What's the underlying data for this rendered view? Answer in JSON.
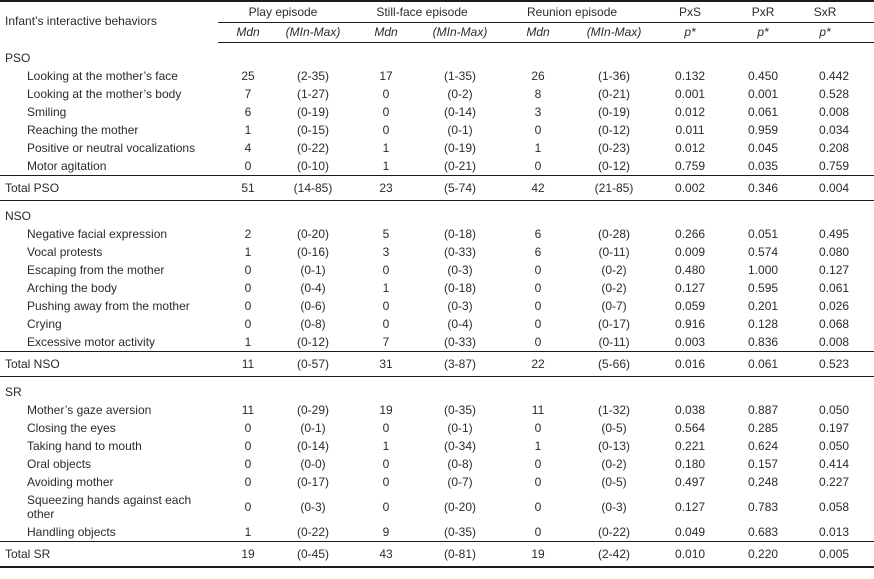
{
  "table": {
    "row_header_label": "Infant’s interactive behaviors",
    "column_groups": [
      {
        "label": "Play episode",
        "sub": [
          "Mdn",
          "(MIn-Max)"
        ]
      },
      {
        "label": "Still-face episode",
        "sub": [
          "Mdn",
          "(MIn-Max)"
        ]
      },
      {
        "label": "Reunion episode",
        "sub": [
          "Mdn",
          "(MIn-Max)"
        ]
      },
      {
        "label": "PxS",
        "sub": [
          "p*"
        ]
      },
      {
        "label": "PxR",
        "sub": [
          "p*"
        ]
      },
      {
        "label": "SxR",
        "sub": [
          "p*"
        ]
      }
    ],
    "sections": [
      {
        "name": "PSO",
        "rows": [
          {
            "label": "Looking at the mother’s face",
            "values": [
              "25",
              "(2-35)",
              "17",
              "(1-35)",
              "26",
              "(1-36)",
              "0.132",
              "0.450",
              "0.442"
            ]
          },
          {
            "label": "Looking at the mother’s body",
            "values": [
              "7",
              "(1-27)",
              "0",
              "(0-2)",
              "8",
              "(0-21)",
              "0.001",
              "0.001",
              "0.528"
            ]
          },
          {
            "label": "Smiling",
            "values": [
              "6",
              "(0-19)",
              "0",
              "(0-14)",
              "3",
              "(0-19)",
              "0.012",
              "0.061",
              "0.008"
            ]
          },
          {
            "label": "Reaching the mother",
            "values": [
              "1",
              "(0-15)",
              "0",
              "(0-1)",
              "0",
              "(0-12)",
              "0.011",
              "0.959",
              "0.034"
            ]
          },
          {
            "label": "Positive or neutral vocalizations",
            "values": [
              "4",
              "(0-22)",
              "1",
              "(0-19)",
              "1",
              "(0-23)",
              "0.012",
              "0.045",
              "0.208"
            ]
          },
          {
            "label": "Motor agitation",
            "values": [
              "0",
              "(0-10)",
              "1",
              "(0-21)",
              "0",
              "(0-12)",
              "0.759",
              "0.035",
              "0.759"
            ]
          }
        ],
        "total": {
          "label": "Total PSO",
          "values": [
            "51",
            "(14-85)",
            "23",
            "(5-74)",
            "42",
            "(21-85)",
            "0.002",
            "0.346",
            "0.004"
          ]
        }
      },
      {
        "name": "NSO",
        "rows": [
          {
            "label": "Negative facial expression",
            "values": [
              "2",
              "(0-20)",
              "5",
              "(0-18)",
              "6",
              "(0-28)",
              "0.266",
              "0.051",
              "0.495"
            ]
          },
          {
            "label": "Vocal protests",
            "values": [
              "1",
              "(0-16)",
              "3",
              "(0-33)",
              "6",
              "(0-11)",
              "0.009",
              "0.574",
              "0.080"
            ]
          },
          {
            "label": "Escaping from the mother",
            "values": [
              "0",
              "(0-1)",
              "0",
              "(0-3)",
              "0",
              "(0-2)",
              "0.480",
              "1.000",
              "0.127"
            ]
          },
          {
            "label": "Arching the body",
            "values": [
              "0",
              "(0-4)",
              "1",
              "(0-18)",
              "0",
              "(0-2)",
              "0.127",
              "0.595",
              "0.061"
            ]
          },
          {
            "label": "Pushing away from the mother",
            "values": [
              "0",
              "(0-6)",
              "0",
              "(0-3)",
              "0",
              "(0-7)",
              "0.059",
              "0.201",
              "0.026"
            ]
          },
          {
            "label": "Crying",
            "values": [
              "0",
              "(0-8)",
              "0",
              "(0-4)",
              "0",
              "(0-17)",
              "0.916",
              "0.128",
              "0.068"
            ]
          },
          {
            "label": "Excessive motor activity",
            "values": [
              "1",
              "(0-12)",
              "7",
              "(0-33)",
              "0",
              "(0-11)",
              "0.003",
              "0.836",
              "0.008"
            ]
          }
        ],
        "total": {
          "label": "Total NSO",
          "values": [
            "11",
            "(0-57)",
            "31",
            "(3-87)",
            "22",
            "(5-66)",
            "0.016",
            "0.061",
            "0.523"
          ]
        }
      },
      {
        "name": "SR",
        "rows": [
          {
            "label": "Mother’s gaze aversion",
            "values": [
              "11",
              "(0-29)",
              "19",
              "(0-35)",
              "11",
              "(1-32)",
              "0.038",
              "0.887",
              "0.050"
            ]
          },
          {
            "label": "Closing the eyes",
            "values": [
              "0",
              "(0-1)",
              "0",
              "(0-1)",
              "0",
              "(0-5)",
              "0.564",
              "0.285",
              "0.197"
            ]
          },
          {
            "label": "Taking hand to mouth",
            "values": [
              "0",
              "(0-14)",
              "1",
              "(0-34)",
              "1",
              "(0-13)",
              "0.221",
              "0.624",
              "0.050"
            ]
          },
          {
            "label": "Oral objects",
            "values": [
              "0",
              "(0-0)",
              "0",
              "(0-8)",
              "0",
              "(0-2)",
              "0.180",
              "0.157",
              "0.414"
            ]
          },
          {
            "label": "Avoiding mother",
            "values": [
              "0",
              "(0-17)",
              "0",
              "(0-7)",
              "0",
              "(0-5)",
              "0.497",
              "0.248",
              "0.227"
            ]
          },
          {
            "label": "Squeezing hands against each\nother",
            "values": [
              "0",
              "(0-3)",
              "0",
              "(0-20)",
              "0",
              "(0-3)",
              "0.127",
              "0.783",
              "0.058"
            ]
          },
          {
            "label": "Handling objects",
            "values": [
              "1",
              "(0-22)",
              "9",
              "(0-35)",
              "0",
              "(0-22)",
              "0.049",
              "0.683",
              "0.013"
            ]
          }
        ],
        "total": {
          "label": "Total SR",
          "values": [
            "19",
            "(0-45)",
            "43",
            "(0-81)",
            "19",
            "(2-42)",
            "0.010",
            "0.220",
            "0.005"
          ]
        }
      }
    ]
  }
}
